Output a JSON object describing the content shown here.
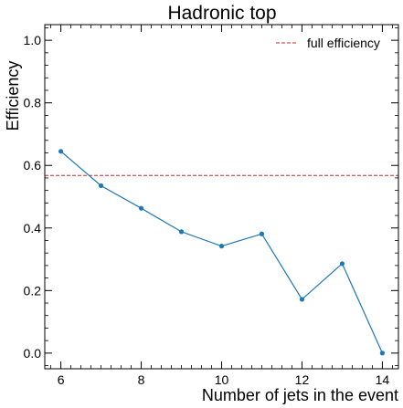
{
  "chart_data": {
    "type": "line",
    "title": "Hadronic top",
    "xlabel": "Number of jets in the event",
    "ylabel": "Efficiency",
    "xlim": [
      5.6,
      14.4
    ],
    "ylim": [
      -0.05,
      1.05
    ],
    "x_ticks": [
      6,
      8,
      10,
      12,
      14
    ],
    "x_tick_labels": [
      "6",
      "8",
      "10",
      "12",
      "14"
    ],
    "y_ticks": [
      0.0,
      0.2,
      0.4,
      0.6,
      0.8,
      1.0
    ],
    "y_tick_labels": [
      "0.0",
      "0.2",
      "0.4",
      "0.6",
      "0.8",
      "1.0"
    ],
    "x_minor_ticks": [
      5.75,
      6.25,
      6.5,
      6.75,
      7,
      7.25,
      7.5,
      7.75,
      8.25,
      8.5,
      8.75,
      9,
      9.25,
      9.5,
      9.75,
      10.25,
      10.5,
      10.75,
      11,
      11.25,
      11.5,
      11.75,
      12.25,
      12.5,
      12.75,
      13,
      13.25,
      13.5,
      13.75,
      14.25
    ],
    "y_minor_ticks": [
      -0.04,
      0.04,
      0.08,
      0.12,
      0.16,
      0.24,
      0.28,
      0.32,
      0.36,
      0.44,
      0.48,
      0.52,
      0.56,
      0.64,
      0.68,
      0.72,
      0.76,
      0.84,
      0.88,
      0.92,
      0.96,
      1.04
    ],
    "grid": false,
    "series": [
      {
        "x": [
          6,
          7,
          8,
          9,
          10,
          11,
          12,
          13,
          14
        ],
        "values": [
          0.645,
          0.535,
          0.463,
          0.388,
          0.342,
          0.381,
          0.172,
          0.286,
          0.0
        ],
        "color": "#1f77b4",
        "marker": "circle"
      }
    ],
    "reference_lines": [
      {
        "name": "full efficiency",
        "y": 0.568,
        "color": "#d62728",
        "style": "dashed"
      }
    ],
    "legend": {
      "position": "top-right",
      "entries": [
        "full efficiency"
      ]
    }
  }
}
